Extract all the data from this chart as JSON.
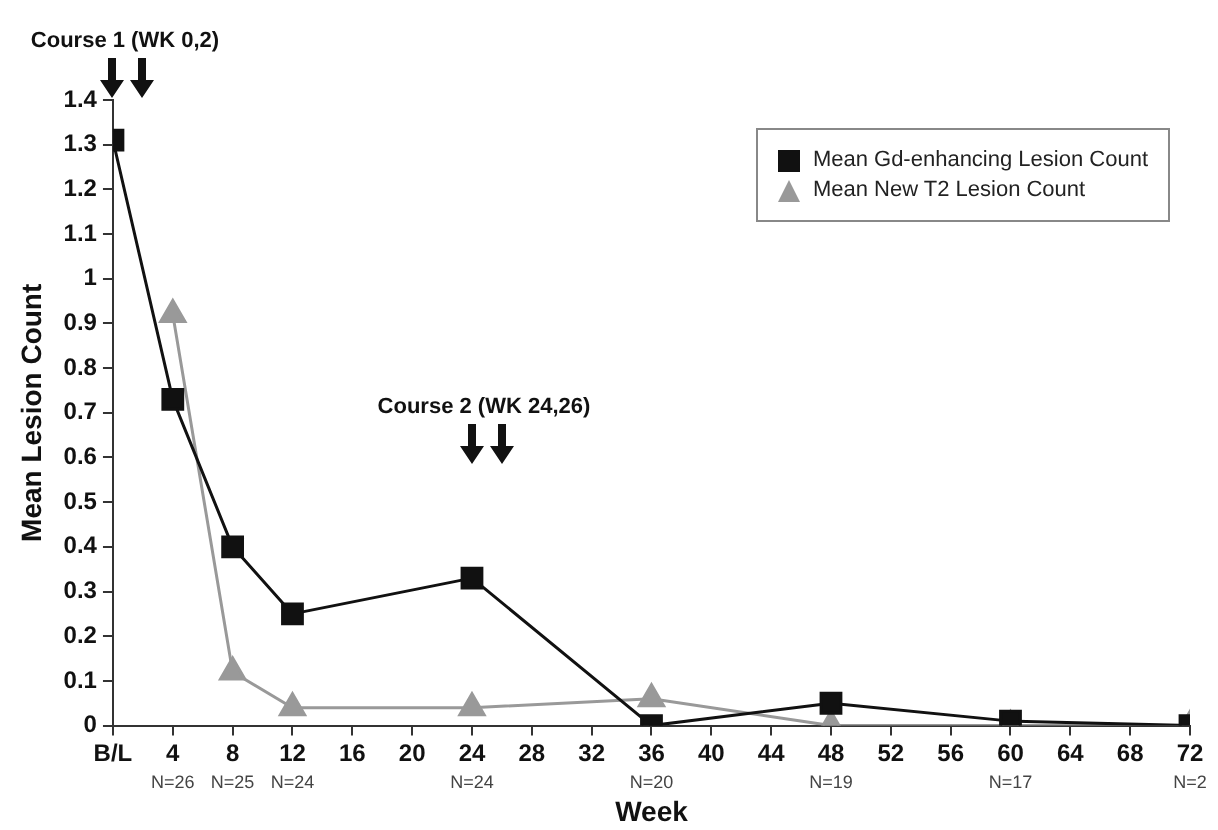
{
  "chart_data": {
    "type": "line",
    "xlabel": "Week",
    "ylabel": "Mean Lesion Count",
    "x": [
      0,
      4,
      8,
      12,
      24,
      36,
      48,
      60,
      72
    ],
    "series": [
      {
        "name": "Mean Gd-enhancing Lesion Count",
        "color": "#111111",
        "marker": "square",
        "values": [
          1.31,
          0.73,
          0.4,
          0.25,
          0.33,
          0,
          0.05,
          0.01,
          0
        ]
      },
      {
        "name": "Mean New T2 Lesion Count",
        "color": "#999999",
        "marker": "triangle",
        "values": [
          null,
          0.92,
          0.12,
          0.04,
          0.04,
          0.06,
          0,
          0,
          0
        ]
      }
    ],
    "xlim": [
      0,
      72
    ],
    "xticks": [
      {
        "value": 0,
        "label": "B/L"
      },
      4,
      8,
      12,
      16,
      20,
      24,
      28,
      32,
      36,
      40,
      44,
      48,
      52,
      56,
      60,
      64,
      68,
      72
    ],
    "ylim": [
      0,
      1.4
    ],
    "yticks": [
      0,
      0.1,
      0.2,
      0.3,
      0.4,
      0.5,
      0.6,
      0.7,
      0.8,
      0.9,
      1,
      1.1,
      1.2,
      1.3,
      1.4
    ],
    "grid": false,
    "legend": "top right",
    "line_style": "solid",
    "annotations": [
      "Course 1 (WK 0,2)",
      "Course 2 (WK 24,26)",
      "N=26",
      "N=25",
      "N=24",
      "N=24",
      "N=20",
      "N=19",
      "N=17",
      "N=2"
    ]
  }
}
